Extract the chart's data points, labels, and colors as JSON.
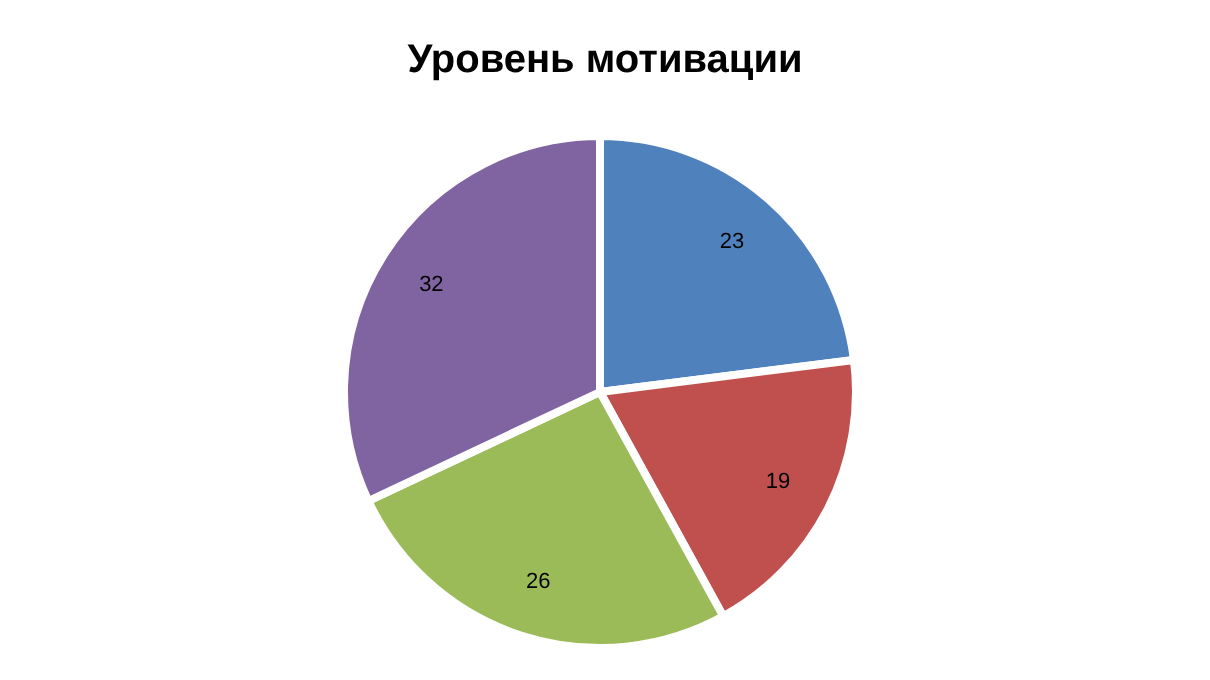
{
  "chart_data": {
    "type": "pie",
    "title": "Уровень мотивации",
    "categories": [
      null,
      null,
      null,
      null
    ],
    "values": [
      23,
      19,
      26,
      32
    ],
    "colors": [
      "#4f81bd",
      "#c0504d",
      "#9bbb59",
      "#8064a2"
    ],
    "data_labels": true,
    "legend": false
  }
}
